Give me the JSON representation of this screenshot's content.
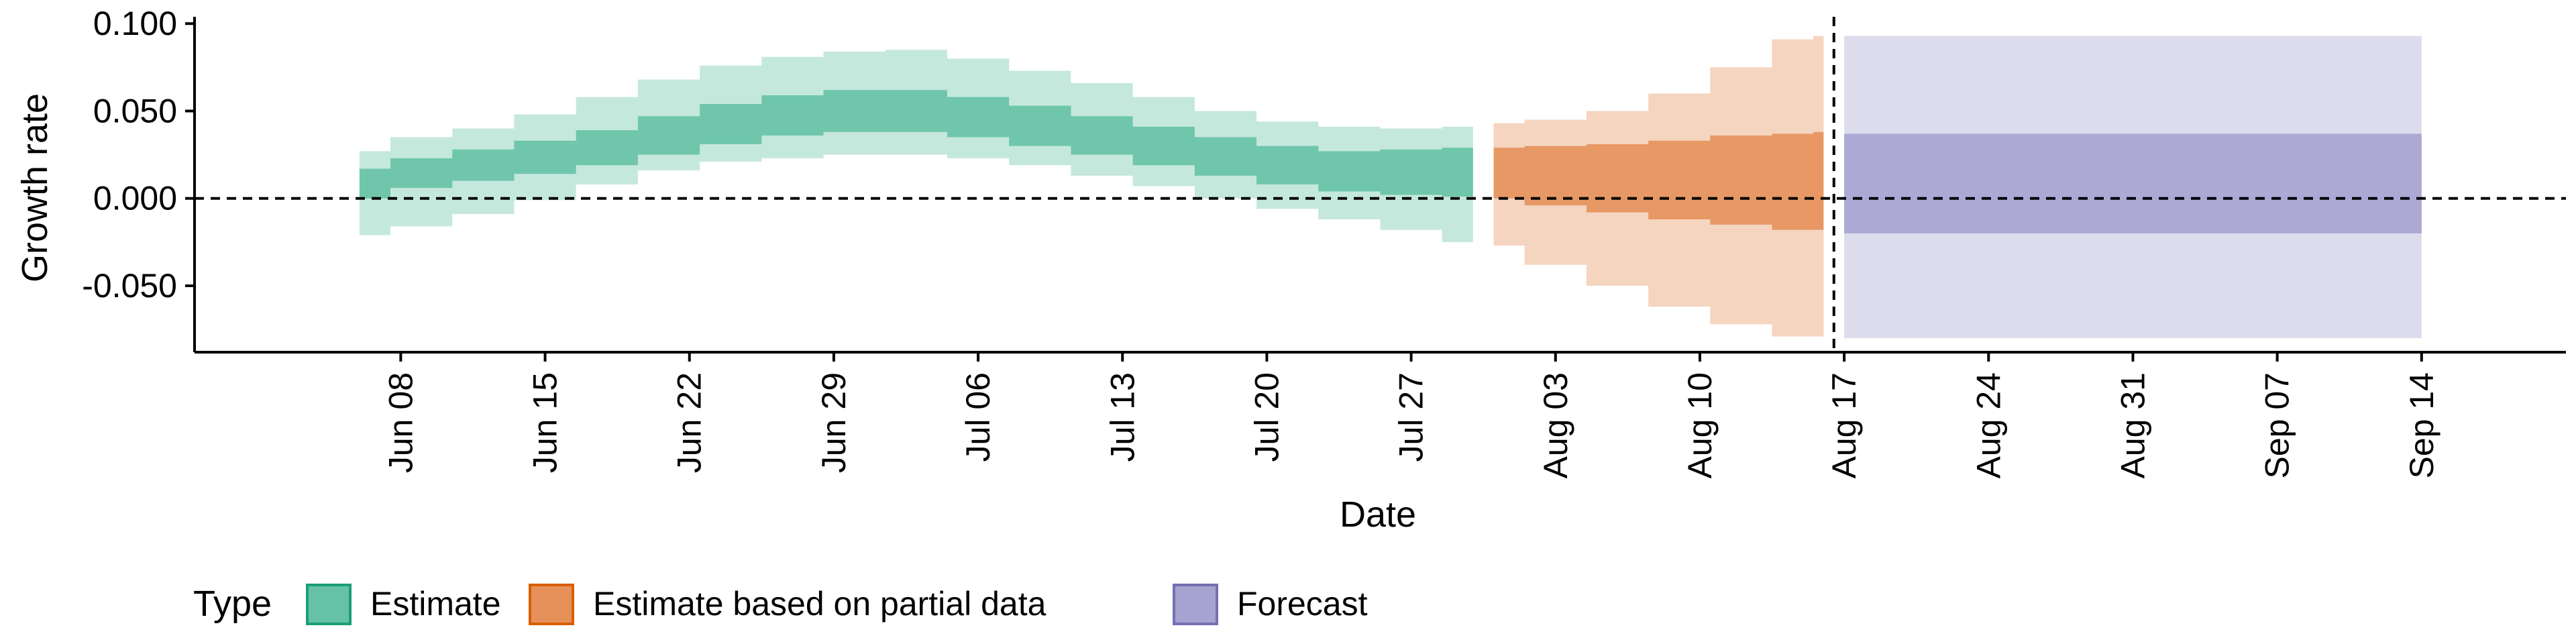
{
  "chart_data": {
    "type": "area",
    "xlabel": "Date",
    "ylabel": "Growth rate",
    "x_ticks": [
      "Jun 08",
      "Jun 15",
      "Jun 22",
      "Jun 29",
      "Jul 06",
      "Jul 13",
      "Jul 20",
      "Jul 27",
      "Aug 03",
      "Aug 10",
      "Aug 17",
      "Aug 24",
      "Aug 31",
      "Sep 07",
      "Sep 14"
    ],
    "y_ticks": [
      "0.100",
      "0.050",
      "0.000",
      "-0.050"
    ],
    "ylim": [
      -0.088,
      0.102
    ],
    "xlim": [
      "2021-05-29",
      "2021-09-21"
    ],
    "reference_lines": {
      "horizontal_y": 0.0,
      "vertical_x": "2021-08-16"
    },
    "legend": {
      "title": "Type",
      "position": "bottom-left"
    },
    "series": [
      {
        "name": "Estimate",
        "color": "#66c2a5",
        "x": [
          "2021-06-06",
          "2021-06-09",
          "2021-06-12",
          "2021-06-15",
          "2021-06-18",
          "2021-06-21",
          "2021-06-24",
          "2021-06-27",
          "2021-06-30",
          "2021-07-03",
          "2021-07-06",
          "2021-07-09",
          "2021-07-12",
          "2021-07-15",
          "2021-07-18",
          "2021-07-21",
          "2021-07-24",
          "2021-07-27",
          "2021-07-30"
        ],
        "lower_90": [
          -0.021,
          -0.016,
          -0.009,
          -0.001,
          0.008,
          0.016,
          0.021,
          0.023,
          0.025,
          0.025,
          0.023,
          0.019,
          0.013,
          0.007,
          0.0,
          -0.006,
          -0.012,
          -0.018,
          -0.025
        ],
        "upper_90": [
          0.027,
          0.035,
          0.04,
          0.048,
          0.058,
          0.068,
          0.076,
          0.081,
          0.084,
          0.085,
          0.08,
          0.073,
          0.066,
          0.058,
          0.05,
          0.044,
          0.041,
          0.04,
          0.041
        ],
        "lower_50": [
          0.0,
          0.006,
          0.01,
          0.014,
          0.019,
          0.025,
          0.031,
          0.036,
          0.038,
          0.038,
          0.035,
          0.03,
          0.025,
          0.019,
          0.013,
          0.008,
          0.004,
          0.002,
          0.001
        ],
        "upper_50": [
          0.017,
          0.023,
          0.028,
          0.033,
          0.039,
          0.047,
          0.054,
          0.059,
          0.062,
          0.062,
          0.058,
          0.053,
          0.047,
          0.041,
          0.035,
          0.03,
          0.027,
          0.028,
          0.029
        ]
      },
      {
        "name": "Estimate based on partial data",
        "color": "#e6915a",
        "x": [
          "2021-07-31",
          "2021-08-03",
          "2021-08-06",
          "2021-08-09",
          "2021-08-12",
          "2021-08-15",
          "2021-08-16"
        ],
        "lower_90": [
          -0.027,
          -0.038,
          -0.05,
          -0.062,
          -0.072,
          -0.079,
          -0.079
        ],
        "upper_90": [
          0.043,
          0.045,
          0.05,
          0.06,
          0.075,
          0.091,
          0.093
        ],
        "lower_50": [
          0.0,
          -0.004,
          -0.008,
          -0.012,
          -0.015,
          -0.018,
          -0.018
        ],
        "upper_50": [
          0.029,
          0.03,
          0.031,
          0.033,
          0.036,
          0.037,
          0.038
        ]
      },
      {
        "name": "Forecast",
        "color": "#a6a3d0",
        "x": [
          "2021-08-17",
          "2021-09-14"
        ],
        "lower_90": [
          -0.08,
          -0.08
        ],
        "upper_90": [
          0.093,
          0.093
        ],
        "lower_50": [
          -0.02,
          -0.02
        ],
        "upper_50": [
          0.037,
          0.037
        ]
      }
    ]
  }
}
